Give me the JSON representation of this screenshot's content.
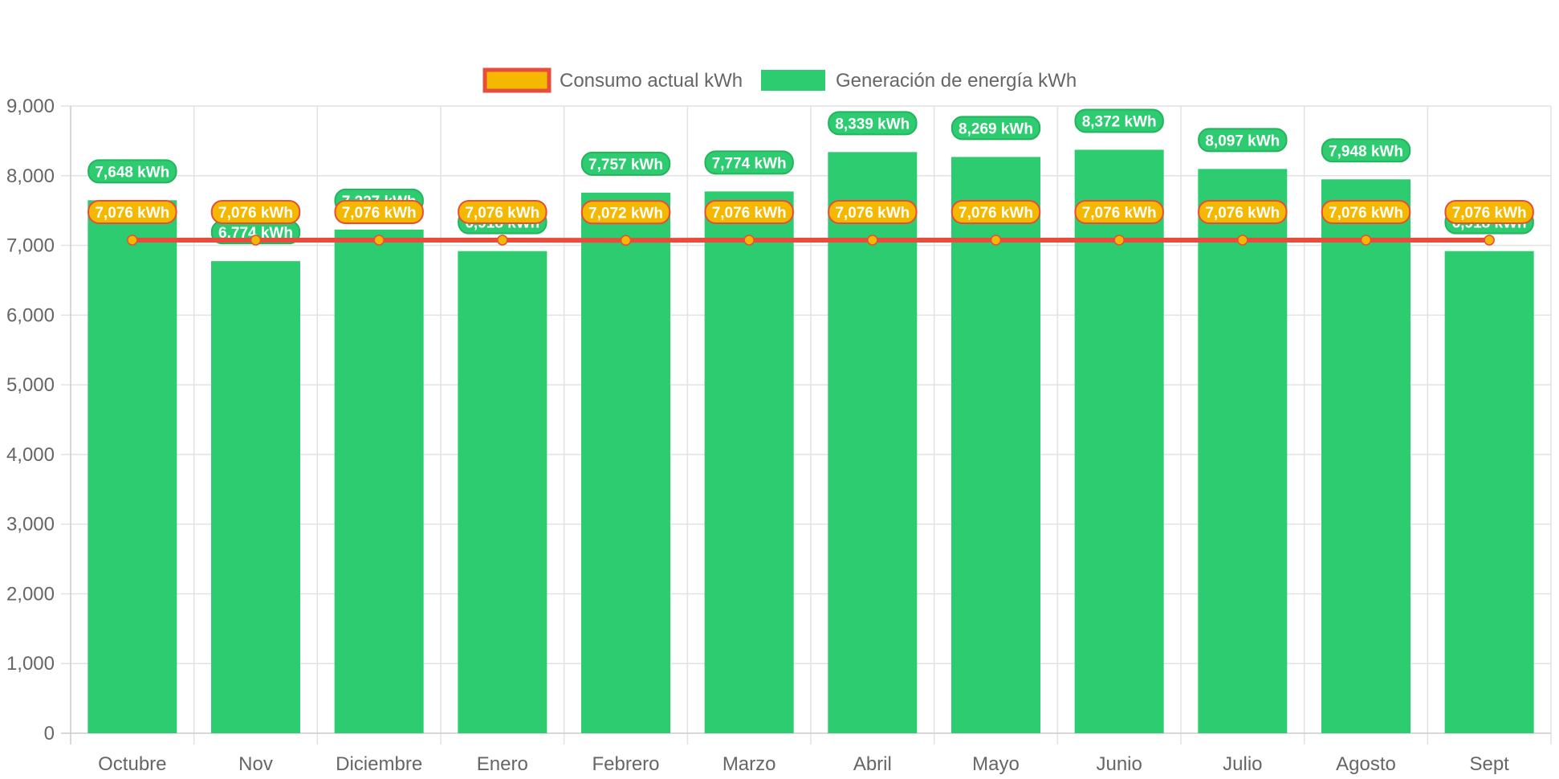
{
  "chart_data": {
    "type": "bar",
    "categories": [
      "Octubre",
      "Nov",
      "Diciembre",
      "Enero",
      "Febrero",
      "Marzo",
      "Abril",
      "Mayo",
      "Junio",
      "Julio",
      "Agosto",
      "Sept"
    ],
    "series": [
      {
        "name": "Consumo actual kWh",
        "type": "line",
        "color": "#e74c3c",
        "point_color": "#f5b800",
        "values": [
          7076,
          7076,
          7076,
          7076,
          7072,
          7076,
          7076,
          7076,
          7076,
          7076,
          7076,
          7076
        ],
        "labels": [
          "7,076 kWh",
          "7,076 kWh",
          "7,076 kWh",
          "7,076 kWh",
          "7,072 kWh",
          "7,076 kWh",
          "7,076 kWh",
          "7,076 kWh",
          "7,076 kWh",
          "7,076 kWh",
          "7,076 kWh",
          "7,076 kWh"
        ]
      },
      {
        "name": "Generación de energía kWh",
        "type": "bar",
        "color": "#2ecc71",
        "values": [
          7648,
          6774,
          7227,
          6918,
          7757,
          7774,
          8339,
          8269,
          8372,
          8097,
          7948,
          6918
        ],
        "labels": [
          "7,648 kWh",
          "6,774 kWh",
          "7,227 kWh",
          "6,918 kWh",
          "7,757 kWh",
          "7,774 kWh",
          "8,339 kWh",
          "8,269 kWh",
          "8,372 kWh",
          "8,097 kWh",
          "7,948 kWh",
          "6,918 kWh"
        ]
      }
    ],
    "ylim": [
      0,
      9000
    ],
    "yticks": [
      "0",
      "1,000",
      "2,000",
      "3,000",
      "4,000",
      "5,000",
      "6,000",
      "7,000",
      "8,000",
      "9,000"
    ],
    "xlabel": "",
    "ylabel": "",
    "title": "",
    "grid": true,
    "legend_position": "top-center"
  }
}
